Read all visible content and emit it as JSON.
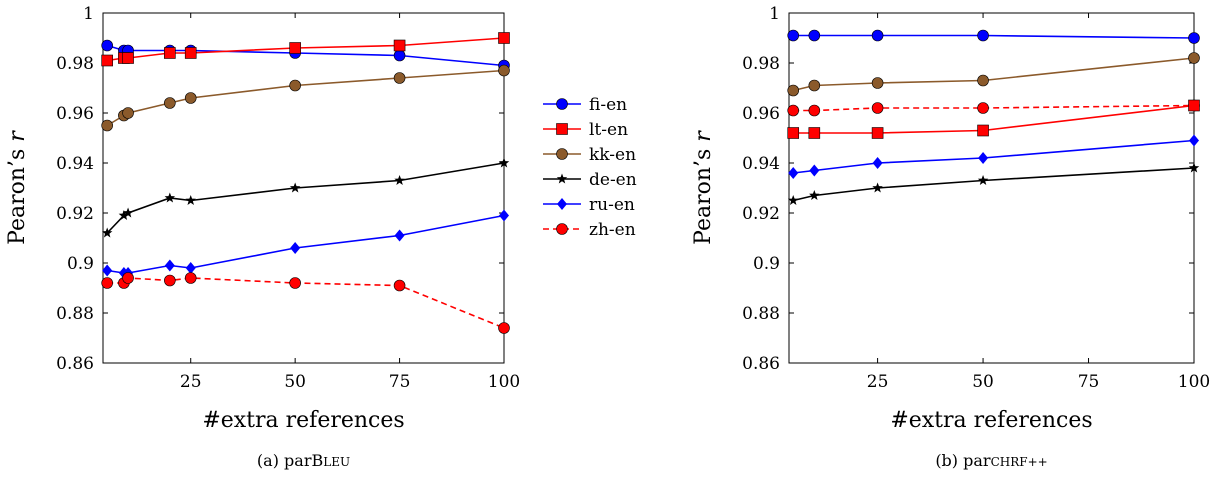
{
  "chart_data": [
    {
      "type": "line",
      "caption": "(a) parBLEU",
      "caption_parts": {
        "prefix": "(a) par",
        "big": "B",
        "small": "LEU"
      },
      "xlabel": "#extra references",
      "ylabel": "Pearon’s r",
      "ylabel_parts": {
        "text": "Pearon’s ",
        "italic": "r"
      },
      "xlim": [
        4,
        100
      ],
      "ylim": [
        0.86,
        1.0
      ],
      "xticks": [
        25,
        50,
        75,
        100
      ],
      "yticks": [
        0.86,
        0.88,
        0.9,
        0.92,
        0.94,
        0.96,
        0.98,
        1
      ],
      "ytick_labels": [
        "0.86",
        "0.88",
        "0.9",
        "0.92",
        "0.94",
        "0.96",
        "0.98",
        "1"
      ],
      "grid": false,
      "legend": "right",
      "series": [
        {
          "name": "fi-en",
          "color": "#0000ff",
          "marker": "circle",
          "dashed": false,
          "x": [
            5,
            9,
            10,
            20,
            25,
            50,
            75,
            100
          ],
          "y": [
            0.987,
            0.985,
            0.985,
            0.985,
            0.985,
            0.984,
            0.983,
            0.979
          ]
        },
        {
          "name": "lt-en",
          "color": "#ff0000",
          "marker": "square",
          "dashed": false,
          "x": [
            5,
            9,
            10,
            20,
            25,
            50,
            75,
            100
          ],
          "y": [
            0.981,
            0.982,
            0.982,
            0.984,
            0.984,
            0.986,
            0.987,
            0.99
          ]
        },
        {
          "name": "kk-en",
          "color": "#8b5a2b",
          "marker": "circle",
          "dashed": false,
          "x": [
            5,
            9,
            10,
            20,
            25,
            50,
            75,
            100
          ],
          "y": [
            0.955,
            0.959,
            0.96,
            0.964,
            0.966,
            0.971,
            0.974,
            0.977
          ]
        },
        {
          "name": "de-en",
          "color": "#000000",
          "marker": "star",
          "dashed": false,
          "x": [
            5,
            9,
            10,
            20,
            25,
            50,
            75,
            100
          ],
          "y": [
            0.912,
            0.919,
            0.92,
            0.926,
            0.925,
            0.93,
            0.933,
            0.94
          ]
        },
        {
          "name": "ru-en",
          "color": "#0000ff",
          "marker": "diamond",
          "dashed": false,
          "x": [
            5,
            9,
            10,
            20,
            25,
            50,
            75,
            100
          ],
          "y": [
            0.897,
            0.896,
            0.896,
            0.899,
            0.898,
            0.906,
            0.911,
            0.919
          ]
        },
        {
          "name": "zh-en",
          "color": "#ff0000",
          "marker": "circle",
          "dashed": true,
          "x": [
            5,
            9,
            10,
            20,
            25,
            50,
            75,
            100
          ],
          "y": [
            0.892,
            0.892,
            0.894,
            0.893,
            0.894,
            0.892,
            0.891,
            0.874
          ]
        }
      ]
    },
    {
      "type": "line",
      "caption": "(b) parCHRF++",
      "caption_parts": {
        "prefix": "(b) par",
        "big": "",
        "small": "CHRF++"
      },
      "xlabel": "#extra references",
      "ylabel": "Pearon’s r",
      "ylabel_parts": {
        "text": "Pearon’s ",
        "italic": "r"
      },
      "xlim": [
        4,
        100
      ],
      "ylim": [
        0.86,
        1.0
      ],
      "xticks": [
        25,
        50,
        75,
        100
      ],
      "yticks": [
        0.86,
        0.88,
        0.9,
        0.92,
        0.94,
        0.96,
        0.98,
        1
      ],
      "ytick_labels": [
        "0.86",
        "0.88",
        "0.9",
        "0.92",
        "0.94",
        "0.96",
        "0.98",
        "1"
      ],
      "grid": false,
      "legend": "none",
      "series": [
        {
          "color": "#0000ff",
          "marker": "circle",
          "dashed": false,
          "x": [
            5,
            10,
            25,
            50,
            100
          ],
          "y": [
            0.991,
            0.991,
            0.991,
            0.991,
            0.99
          ]
        },
        {
          "color": "#8b5a2b",
          "marker": "circle",
          "dashed": false,
          "x": [
            5,
            10,
            25,
            50,
            100
          ],
          "y": [
            0.969,
            0.971,
            0.972,
            0.973,
            0.982
          ]
        },
        {
          "color": "#ff0000",
          "marker": "circle",
          "dashed": true,
          "x": [
            5,
            10,
            25,
            50,
            100
          ],
          "y": [
            0.961,
            0.961,
            0.962,
            0.962,
            0.963
          ]
        },
        {
          "color": "#ff0000",
          "marker": "square",
          "dashed": false,
          "x": [
            5,
            10,
            25,
            50,
            100
          ],
          "y": [
            0.952,
            0.952,
            0.952,
            0.953,
            0.963
          ]
        },
        {
          "color": "#0000ff",
          "marker": "diamond",
          "dashed": false,
          "x": [
            5,
            10,
            25,
            50,
            100
          ],
          "y": [
            0.936,
            0.937,
            0.94,
            0.942,
            0.949
          ]
        },
        {
          "color": "#000000",
          "marker": "star",
          "dashed": false,
          "x": [
            5,
            10,
            25,
            50,
            100
          ],
          "y": [
            0.925,
            0.927,
            0.93,
            0.933,
            0.938
          ]
        }
      ]
    }
  ]
}
